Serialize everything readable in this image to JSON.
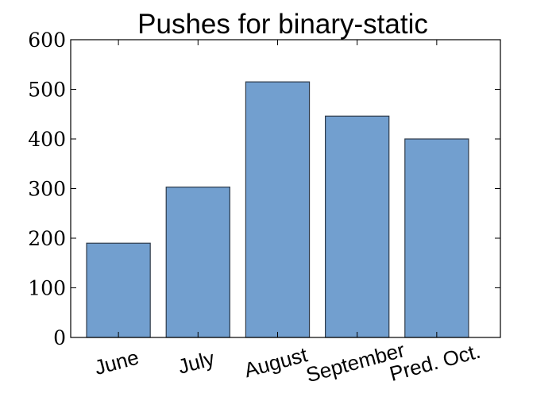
{
  "chart_data": {
    "type": "bar",
    "title": "Pushes for binary-static",
    "categories": [
      "June",
      "July",
      "August",
      "September",
      "Pred. Oct."
    ],
    "values": [
      190,
      303,
      515,
      446,
      400
    ],
    "ylim": [
      0,
      600
    ],
    "yticks": [
      0,
      100,
      200,
      300,
      400,
      500,
      600
    ],
    "xlabel": "",
    "ylabel": "",
    "bar_color": "#729fcf",
    "bar_edge_color": "#2f3b4a",
    "grid": false,
    "legend": false
  }
}
